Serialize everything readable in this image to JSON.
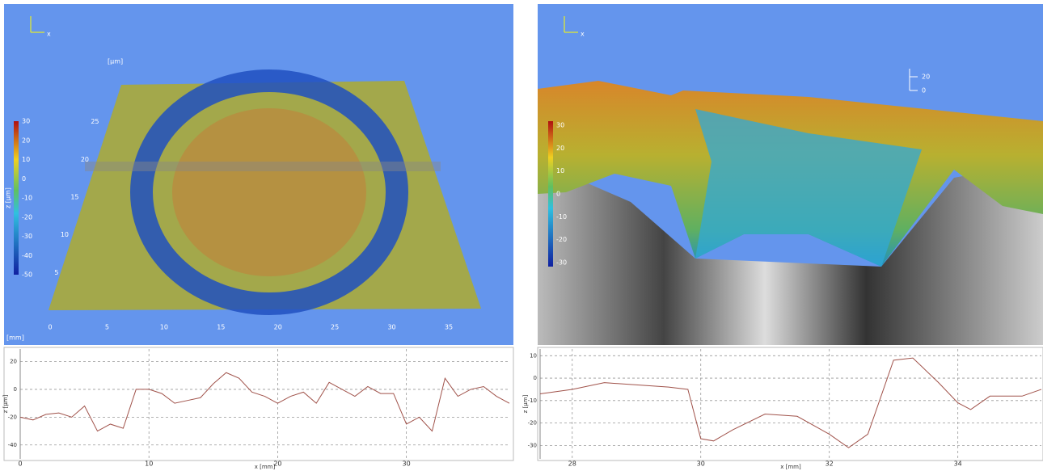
{
  "views": [
    {
      "axis_icon": "x",
      "unit_top": "[µm]",
      "unit_bottom": "[mm]",
      "colorbar_label": "z [µm]",
      "colorbar_ticks": [
        30,
        20,
        10,
        0,
        -10,
        -20,
        -30,
        -40,
        -50
      ],
      "x_ticks": [
        0,
        5,
        10,
        15,
        20,
        25,
        30,
        35
      ],
      "y_ticks": [
        5,
        10,
        15,
        20,
        25
      ]
    },
    {
      "axis_icon": "x",
      "colorbar_ticks": [
        30,
        20,
        10,
        0,
        -10,
        -20,
        -30
      ],
      "scale_ticks": [
        20,
        0
      ]
    }
  ],
  "chart_data": [
    {
      "type": "line",
      "xlabel": "x [mm]",
      "ylabel": "z [µm]",
      "color": "#a0524a",
      "grid": true,
      "x": [
        0,
        1,
        2,
        3,
        4,
        5,
        6,
        7,
        8,
        9,
        10,
        11,
        12,
        13,
        14,
        15,
        16,
        17,
        18,
        19,
        20,
        21,
        22,
        23,
        24,
        25,
        26,
        27,
        28,
        29,
        30,
        31,
        32,
        33,
        34,
        35,
        36,
        37,
        38
      ],
      "values": [
        -20,
        -22,
        -18,
        -17,
        -20,
        -12,
        -30,
        -25,
        -28,
        0,
        0,
        -3,
        -10,
        -8,
        -6,
        4,
        12,
        8,
        -2,
        -5,
        -10,
        -5,
        -2,
        -10,
        5,
        0,
        -5,
        2,
        -3,
        -3,
        -25,
        -20,
        -30,
        8,
        -5,
        0,
        2,
        -5,
        -10
      ],
      "xlim": [
        0,
        38
      ],
      "ylim": [
        -50,
        29
      ],
      "xticks": [
        0,
        10,
        20,
        30
      ],
      "yticks": [
        20,
        0,
        -20,
        -40
      ]
    },
    {
      "type": "line",
      "xlabel": "x [mm]",
      "ylabel": "z [µm]",
      "color": "#a0524a",
      "grid": true,
      "x": [
        27.5,
        28,
        28.5,
        29,
        29.5,
        29.8,
        30,
        30.2,
        30.5,
        31,
        31.5,
        32,
        32.3,
        32.6,
        33,
        33.3,
        33.7,
        34,
        34.2,
        34.5,
        35,
        35.3
      ],
      "values": [
        -7,
        -5,
        -2,
        -3,
        -4,
        -5,
        -27,
        -28,
        -23,
        -16,
        -17,
        -25,
        -31,
        -25,
        8,
        9,
        -2,
        -11,
        -14,
        -8,
        -8,
        -5
      ],
      "xlim": [
        27.5,
        35.3
      ],
      "ylim": [
        -36,
        13
      ],
      "xticks": [
        28,
        30,
        32,
        34
      ],
      "yticks": [
        10,
        0,
        -10,
        -20,
        -30
      ]
    }
  ]
}
